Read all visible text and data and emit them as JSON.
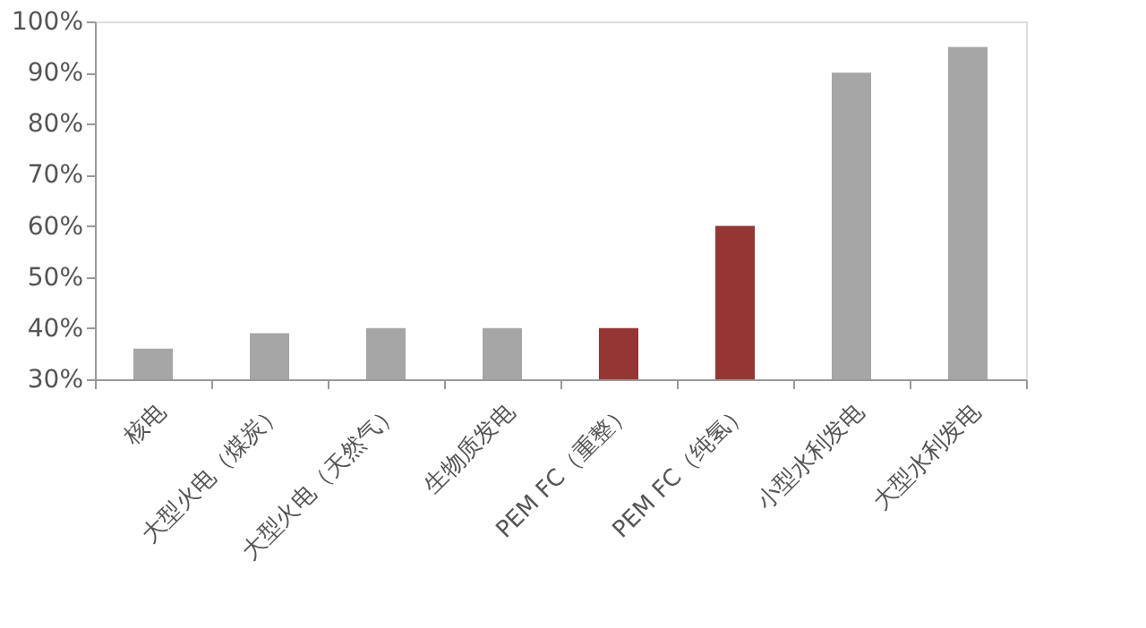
{
  "chart_data": {
    "type": "bar",
    "categories": [
      "核电",
      "大型火电（煤炭）",
      "大型火电（天然气）",
      "生物质发电",
      "PEM FC（重整）",
      "PEM FC（纯氢）",
      "小型水利发电",
      "大型水利发电"
    ],
    "values": [
      36,
      39,
      40,
      40,
      40,
      60,
      90,
      95
    ],
    "colors": [
      "#a6a6a6",
      "#a6a6a6",
      "#a6a6a6",
      "#a6a6a6",
      "#943634",
      "#943634",
      "#a6a6a6",
      "#a6a6a6"
    ],
    "ylim": [
      30,
      100
    ],
    "yticks": [
      {
        "value": 30,
        "label": "30%"
      },
      {
        "value": 40,
        "label": "40%"
      },
      {
        "value": 50,
        "label": "50%"
      },
      {
        "value": 60,
        "label": "60%"
      },
      {
        "value": 70,
        "label": "70%"
      },
      {
        "value": 80,
        "label": "80%"
      },
      {
        "value": 90,
        "label": "90%"
      },
      {
        "value": 100,
        "label": "100%"
      }
    ],
    "grid": false
  }
}
